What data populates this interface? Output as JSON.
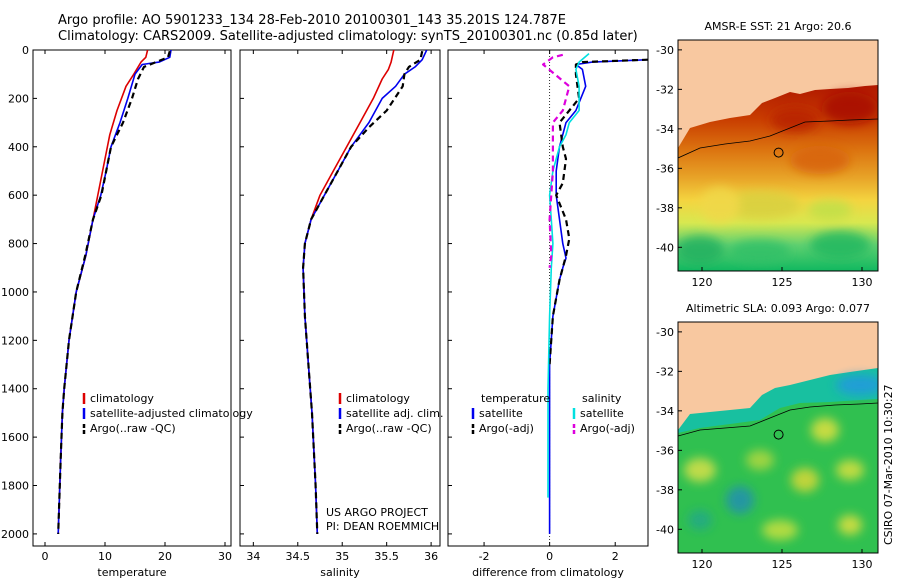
{
  "header": {
    "line1": "Argo profile: AO 5901233_134 28-Feb-2010 20100301_143 35.201S 124.787E",
    "line2": "Climatology: CARS2009. Satellite-adjusted climatology: synTS_20100301.nc (0.85d later)"
  },
  "stamp": "CSIRO 07-Mar-2010 10:30:27",
  "colors": {
    "climatology": "#dd0000",
    "satellite": "#0000ee",
    "argo": "#000000",
    "cyan": "#00e0e0",
    "magenta": "#dd00dd",
    "land": "#f8c8a0"
  },
  "chart_data": [
    {
      "type": "line",
      "title": "",
      "xlabel": "temperature",
      "ylabel": "",
      "xlim": [
        -2,
        31
      ],
      "ylim": [
        2050,
        0
      ],
      "xticks": [
        0,
        10,
        20,
        30
      ],
      "yticks": [
        0,
        200,
        400,
        600,
        800,
        1000,
        1200,
        1400,
        1600,
        1800,
        2000
      ],
      "legend": [
        "climatology",
        "satellite-adjusted climatology",
        "Argo(..raw -QC)"
      ],
      "series": [
        {
          "name": "climatology",
          "color": "climatology",
          "dash": false,
          "x": [
            17.1,
            16.8,
            16.0,
            14.8,
            13.5,
            12.0,
            10.8,
            10.0,
            9.2,
            8.0,
            6.8,
            5.2,
            4.0,
            3.2,
            2.9,
            2.6,
            2.4,
            2.2
          ],
          "y": [
            0,
            30,
            50,
            100,
            150,
            250,
            350,
            450,
            550,
            700,
            850,
            1000,
            1200,
            1400,
            1500,
            1700,
            1850,
            2000
          ]
        },
        {
          "name": "satellite-adjusted climatology",
          "color": "satellite",
          "dash": false,
          "x": [
            21.0,
            20.8,
            19.0,
            16.2,
            15.0,
            13.8,
            12.5,
            11.0,
            10.2,
            9.3,
            8.0,
            6.8,
            5.2,
            4.0,
            3.2,
            2.9,
            2.6,
            2.4,
            2.2
          ],
          "y": [
            0,
            30,
            50,
            60,
            100,
            200,
            300,
            400,
            500,
            600,
            700,
            850,
            1000,
            1200,
            1400,
            1500,
            1700,
            1850,
            2000
          ]
        },
        {
          "name": "Argo(..raw -QC)",
          "color": "argo",
          "dash": true,
          "x": [
            20.8,
            20.5,
            18.5,
            16.5,
            15.5,
            14.5,
            13.0,
            11.0,
            10.2,
            9.4,
            8.0,
            6.7,
            5.2,
            4.0,
            3.2,
            2.9,
            2.6,
            2.4,
            2.2
          ],
          "y": [
            5,
            30,
            50,
            70,
            120,
            200,
            300,
            400,
            500,
            600,
            700,
            850,
            1000,
            1200,
            1400,
            1500,
            1700,
            1850,
            2000
          ]
        }
      ]
    },
    {
      "type": "line",
      "title": "",
      "xlabel": "salinity",
      "ylabel": "",
      "xlim": [
        33.85,
        36.1
      ],
      "ylim": [
        2050,
        0
      ],
      "xticks": [
        34,
        34.5,
        35,
        35.5,
        36
      ],
      "xticklabels": [
        "34",
        "34.5",
        "35",
        "35.5",
        "36"
      ],
      "legend": [
        "climatology",
        "satellite adj. clim.",
        "Argo(..raw -QC)"
      ],
      "annotation": [
        "US ARGO PROJECT",
        "PI: DEAN ROEMMICH"
      ],
      "series": [
        {
          "name": "climatology",
          "color": "climatology",
          "dash": false,
          "x": [
            35.58,
            35.55,
            35.52,
            35.45,
            35.35,
            35.2,
            35.05,
            34.9,
            34.75,
            34.65,
            34.58,
            34.56,
            34.58,
            34.62,
            34.66,
            34.7,
            34.72
          ],
          "y": [
            0,
            50,
            80,
            120,
            200,
            300,
            400,
            500,
            600,
            700,
            800,
            900,
            1100,
            1300,
            1500,
            1800,
            2000
          ]
        },
        {
          "name": "satellite adj. clim.",
          "color": "satellite",
          "dash": false,
          "x": [
            35.95,
            35.9,
            35.82,
            35.7,
            35.6,
            35.45,
            35.3,
            35.1,
            34.95,
            34.8,
            34.65,
            34.58,
            34.56,
            34.58,
            34.62,
            34.66,
            34.7,
            34.72
          ],
          "y": [
            0,
            40,
            70,
            100,
            150,
            200,
            300,
            400,
            500,
            600,
            700,
            800,
            900,
            1100,
            1300,
            1500,
            1800,
            2000
          ]
        },
        {
          "name": "Argo(..raw -QC)",
          "color": "argo",
          "dash": true,
          "x": [
            35.9,
            35.88,
            35.75,
            35.7,
            35.68,
            35.5,
            35.3,
            35.1,
            34.95,
            34.8,
            34.65,
            34.58,
            34.56,
            34.58,
            34.62,
            34.66,
            34.7,
            34.72
          ],
          "y": [
            5,
            40,
            70,
            100,
            150,
            250,
            320,
            400,
            500,
            600,
            700,
            800,
            900,
            1100,
            1300,
            1500,
            1800,
            2000
          ]
        }
      ]
    },
    {
      "type": "line",
      "title": "",
      "xlabel": "difference from climatology",
      "ylabel": "",
      "xlim": [
        -3.1,
        3.0
      ],
      "ylim": [
        2050,
        0
      ],
      "xticks": [
        -2,
        0,
        2
      ],
      "zero_line": true,
      "legend_left": [
        "temperature",
        "satellite",
        "Argo(-adj)"
      ],
      "legend_right": [
        "salinity",
        "satellite",
        "Argo(-adj)"
      ],
      "series": [
        {
          "name": "temperature satellite",
          "color": "satellite",
          "dash": false,
          "x": [
            3.0,
            1.3,
            0.8,
            1.0,
            1.1,
            0.8,
            0.5,
            0.3,
            0.2,
            0.2,
            0.3,
            0.4,
            0.5,
            0.4,
            0.3,
            0.1,
            0.0,
            0.0,
            0.0
          ],
          "y": [
            40,
            50,
            60,
            80,
            150,
            250,
            300,
            400,
            500,
            600,
            700,
            800,
            860,
            900,
            950,
            1100,
            1300,
            1600,
            2000
          ]
        },
        {
          "name": "temperature Argo(-adj)",
          "color": "argo",
          "dash": true,
          "x": [
            3.0,
            1.0,
            0.8,
            0.8,
            0.9,
            0.3,
            0.4,
            0.5,
            0.4,
            0.2,
            0.5,
            0.6,
            0.5,
            0.4,
            0.3,
            0.1,
            0.0
          ],
          "y": [
            40,
            50,
            60,
            100,
            200,
            300,
            400,
            450,
            550,
            600,
            700,
            780,
            850,
            900,
            950,
            1100,
            1300
          ]
        },
        {
          "name": "salinity satellite",
          "color": "cyan",
          "dash": false,
          "x": [
            1.2,
            0.9,
            0.8,
            0.9,
            0.9,
            0.6,
            0.5,
            0.3,
            0.1,
            0.0,
            0.05,
            0.1,
            0.05,
            0.0,
            -0.05,
            -0.05,
            -0.05
          ],
          "y": [
            15,
            50,
            80,
            150,
            250,
            300,
            350,
            400,
            500,
            600,
            700,
            800,
            900,
            1100,
            1400,
            1800,
            1850
          ]
        },
        {
          "name": "salinity Argo(-adj)",
          "color": "magenta",
          "dash": true,
          "x": [
            0.4,
            0.1,
            -0.2,
            0.6,
            0.4,
            0.1,
            0.1,
            0.0,
            0.05,
            0.0
          ],
          "y": [
            20,
            30,
            60,
            150,
            250,
            300,
            500,
            700,
            850,
            900
          ]
        }
      ]
    },
    {
      "type": "heatmap",
      "title": "AMSR-E SST: 21  Argo: 20.6",
      "xlim": [
        118.5,
        131
      ],
      "ylim": [
        -41.2,
        -29.5
      ],
      "xticks": [
        120,
        125,
        130
      ],
      "yticks": [
        -30,
        -32,
        -34,
        -36,
        -38,
        -40
      ],
      "marker": {
        "lon": 124.787,
        "lat": -35.201
      }
    },
    {
      "type": "heatmap",
      "title": "Altimetric SLA: 0.093  Argo: 0.077",
      "xlim": [
        118.5,
        131
      ],
      "ylim": [
        -41.2,
        -29.5
      ],
      "xticks": [
        120,
        125,
        130
      ],
      "yticks": [
        -30,
        -32,
        -34,
        -36,
        -38,
        -40
      ],
      "marker": {
        "lon": 124.787,
        "lat": -35.201
      }
    }
  ]
}
